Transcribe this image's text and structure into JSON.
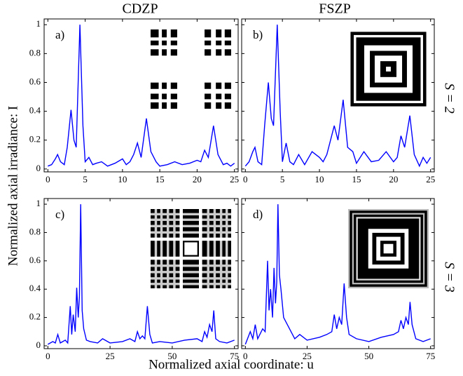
{
  "column_titles": [
    "CDZP",
    "FSZP"
  ],
  "row_labels": [
    "S = 2",
    "S = 3"
  ],
  "ylabel": "Normalized axial irradiance: I",
  "xlabel": "Normalized axial coordinate: u",
  "chart_data": [
    {
      "type": "line",
      "panel_label": "a)",
      "color": "#0000ff",
      "x": [
        0,
        0.5,
        1,
        1.3,
        1.7,
        2.2,
        2.6,
        3.1,
        3.5,
        3.8,
        4.3,
        4.7,
        5,
        5.5,
        6,
        6.5,
        7.2,
        8,
        9,
        10,
        10.5,
        11,
        11.5,
        12,
        12.5,
        13.2,
        13.8,
        14.5,
        15,
        16,
        17,
        18,
        19,
        20,
        20.5,
        21,
        21.5,
        22.2,
        22.8,
        23.5,
        24,
        24.5,
        25
      ],
      "values": [
        0.02,
        0.03,
        0.07,
        0.1,
        0.05,
        0.03,
        0.15,
        0.41,
        0.2,
        0.15,
        1.0,
        0.3,
        0.05,
        0.08,
        0.03,
        0.04,
        0.05,
        0.02,
        0.04,
        0.07,
        0.03,
        0.05,
        0.1,
        0.18,
        0.08,
        0.35,
        0.12,
        0.05,
        0.02,
        0.03,
        0.05,
        0.03,
        0.04,
        0.06,
        0.05,
        0.13,
        0.08,
        0.3,
        0.1,
        0.03,
        0.04,
        0.02,
        0.04
      ],
      "xlim": [
        -0.5,
        25.5
      ],
      "ylim": [
        -0.02,
        1.04
      ],
      "xticks": [
        0,
        5,
        10,
        15,
        20,
        25
      ],
      "yticks": [
        0,
        0.2,
        0.4,
        0.6,
        0.8,
        1
      ]
    },
    {
      "type": "line",
      "panel_label": "b)",
      "color": "#0000ff",
      "x": [
        0,
        0.5,
        1,
        1.3,
        1.7,
        2.2,
        2.6,
        3.1,
        3.5,
        3.8,
        4.3,
        4.7,
        5,
        5.5,
        6,
        6.5,
        7.2,
        8,
        9,
        10,
        10.5,
        11,
        11.5,
        12,
        12.5,
        13.2,
        13.8,
        14.5,
        15,
        16,
        17,
        18,
        19,
        20,
        20.5,
        21,
        21.5,
        22.2,
        22.8,
        23.5,
        24,
        24.5,
        25
      ],
      "values": [
        0.02,
        0.05,
        0.12,
        0.15,
        0.05,
        0.03,
        0.3,
        0.6,
        0.35,
        0.3,
        1.0,
        0.4,
        0.05,
        0.18,
        0.05,
        0.03,
        0.1,
        0.03,
        0.12,
        0.08,
        0.05,
        0.1,
        0.2,
        0.3,
        0.2,
        0.48,
        0.15,
        0.12,
        0.04,
        0.12,
        0.05,
        0.06,
        0.12,
        0.05,
        0.08,
        0.23,
        0.15,
        0.37,
        0.1,
        0.02,
        0.08,
        0.04,
        0.08
      ],
      "xlim": [
        -0.5,
        25.5
      ],
      "ylim": [
        -0.02,
        1.04
      ],
      "xticks": [
        0,
        5,
        10,
        15,
        20,
        25
      ],
      "yticks": [
        0,
        0.2,
        0.4,
        0.6,
        0.8,
        1
      ]
    },
    {
      "type": "line",
      "panel_label": "c)",
      "color": "#0000ff",
      "x": [
        0,
        2,
        3,
        4,
        5,
        7,
        8,
        9,
        9.6,
        10.2,
        11,
        11.6,
        12.2,
        12.7,
        13.2,
        13.8,
        14.4,
        15.5,
        17,
        20,
        22,
        25,
        30,
        33,
        35,
        36,
        37,
        38,
        39,
        40,
        41,
        42,
        45,
        50,
        55,
        60,
        62,
        63,
        64,
        65,
        66,
        66.7,
        67.5,
        69,
        72,
        75
      ],
      "values": [
        0.01,
        0.03,
        0.02,
        0.08,
        0.02,
        0.04,
        0.02,
        0.28,
        0.08,
        0.22,
        0.1,
        0.41,
        0.2,
        0.35,
        1.0,
        0.25,
        0.12,
        0.04,
        0.03,
        0.02,
        0.05,
        0.02,
        0.03,
        0.05,
        0.03,
        0.1,
        0.05,
        0.07,
        0.05,
        0.28,
        0.08,
        0.02,
        0.03,
        0.02,
        0.04,
        0.05,
        0.03,
        0.1,
        0.06,
        0.15,
        0.1,
        0.25,
        0.05,
        0.03,
        0.02,
        0.04
      ],
      "xlim": [
        -1.5,
        76.5
      ],
      "ylim": [
        -0.02,
        1.04
      ],
      "xticks": [
        0,
        25,
        50,
        75
      ],
      "yticks": [
        0,
        0.2,
        0.4,
        0.6,
        0.8,
        1
      ]
    },
    {
      "type": "line",
      "panel_label": "d)",
      "color": "#0000ff",
      "x": [
        0,
        2,
        3,
        4,
        5,
        7,
        8,
        9,
        9.6,
        10.2,
        11,
        11.6,
        12.2,
        12.7,
        13.2,
        13.8,
        14.4,
        15.5,
        17,
        20,
        22,
        25,
        30,
        33,
        35,
        36,
        37,
        38,
        39,
        40,
        41,
        42,
        45,
        50,
        55,
        60,
        62,
        63,
        64,
        65,
        66,
        66.7,
        67.5,
        69,
        72,
        75
      ],
      "values": [
        0.01,
        0.1,
        0.05,
        0.15,
        0.05,
        0.12,
        0.1,
        0.6,
        0.25,
        0.4,
        0.2,
        0.55,
        0.3,
        0.45,
        1.0,
        0.5,
        0.4,
        0.2,
        0.15,
        0.05,
        0.08,
        0.04,
        0.06,
        0.08,
        0.1,
        0.22,
        0.12,
        0.2,
        0.15,
        0.44,
        0.2,
        0.08,
        0.05,
        0.03,
        0.06,
        0.08,
        0.1,
        0.18,
        0.12,
        0.2,
        0.15,
        0.31,
        0.15,
        0.05,
        0.03,
        0.05
      ],
      "xlim": [
        -1.5,
        76.5
      ],
      "ylim": [
        -0.02,
        1.04
      ],
      "xticks": [
        0,
        25,
        50,
        75
      ],
      "yticks": [
        0,
        0.2,
        0.4,
        0.6,
        0.8,
        1
      ]
    }
  ]
}
